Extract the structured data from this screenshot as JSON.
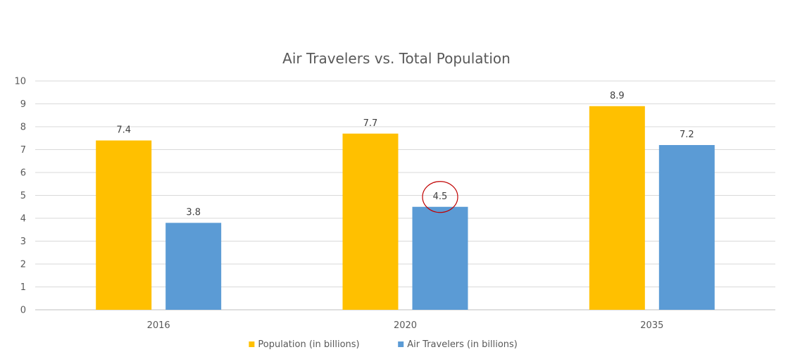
{
  "chart_data": {
    "type": "bar",
    "title": "Air Travelers vs. Total Population",
    "categories": [
      "2016",
      "2020",
      "2035"
    ],
    "series": [
      {
        "name": "Population (in billions)",
        "values": [
          7.4,
          7.7,
          8.9
        ],
        "color": "#FFC000",
        "labels": [
          "7.4",
          "7.7",
          "8.9"
        ]
      },
      {
        "name": "Air Travelers (in billions)",
        "values": [
          3.8,
          4.5,
          7.2
        ],
        "color": "#5B9BD5",
        "labels": [
          "3.8",
          "4.5",
          "7.2"
        ]
      }
    ],
    "ylim": [
      0,
      10
    ],
    "yticks": [
      "0",
      "1",
      "2",
      "3",
      "4",
      "5",
      "6",
      "7",
      "8",
      "9",
      "10"
    ],
    "xlabel": "",
    "ylabel": "",
    "grid": true,
    "legend_position": "bottom",
    "highlight": {
      "series": 1,
      "category": 1,
      "shape": "circle",
      "color": "#C00000"
    }
  }
}
